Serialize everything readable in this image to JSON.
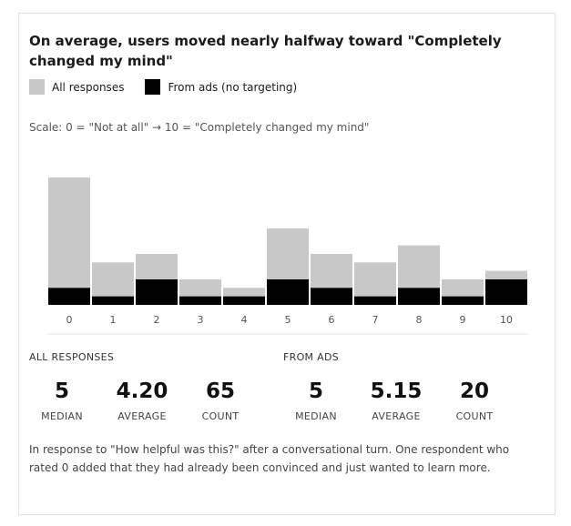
{
  "card": {
    "title": "On average, users moved nearly halfway toward \"Completely changed my mind\"",
    "scale_note": "Scale: 0 = \"Not at all\" → 10 = \"Completely changed my mind\"",
    "footnote": "In response to \"How helpful was this?\" after a conversational turn. One respondent who rated 0 added that they had already been convinced and just wanted to learn more."
  },
  "legend": [
    {
      "label": "All responses",
      "color": "#c8c8c8"
    },
    {
      "label": "From ads (no targeting)",
      "color": "#000000"
    }
  ],
  "chart_data": {
    "type": "bar",
    "categories": [
      "0",
      "1",
      "2",
      "3",
      "4",
      "5",
      "6",
      "7",
      "8",
      "9",
      "10"
    ],
    "series": [
      {
        "name": "All responses",
        "values": [
          15,
          5,
          6,
          3,
          2,
          9,
          6,
          5,
          7,
          3,
          4
        ],
        "color": "#c8c8c8"
      },
      {
        "name": "From ads (no targeting)",
        "values": [
          2,
          1,
          3,
          1,
          1,
          3,
          2,
          1,
          2,
          1,
          3
        ],
        "color": "#000000"
      }
    ],
    "overlay": true,
    "ylim": [
      0,
      15
    ],
    "title": "On average, users moved nearly halfway toward \"Completely changed my mind\"",
    "xlabel": "",
    "ylabel": "",
    "grid": false,
    "legend_position": "top-left"
  },
  "stats": {
    "all": {
      "label": "ALL RESPONSES",
      "items": [
        {
          "value": "5",
          "label": "MEDIAN"
        },
        {
          "value": "4.20",
          "label": "AVERAGE"
        },
        {
          "value": "65",
          "label": "COUNT"
        }
      ]
    },
    "ads": {
      "label": "FROM ADS",
      "items": [
        {
          "value": "5",
          "label": "MEDIAN"
        },
        {
          "value": "5.15",
          "label": "AVERAGE"
        },
        {
          "value": "20",
          "label": "COUNT"
        }
      ]
    }
  }
}
